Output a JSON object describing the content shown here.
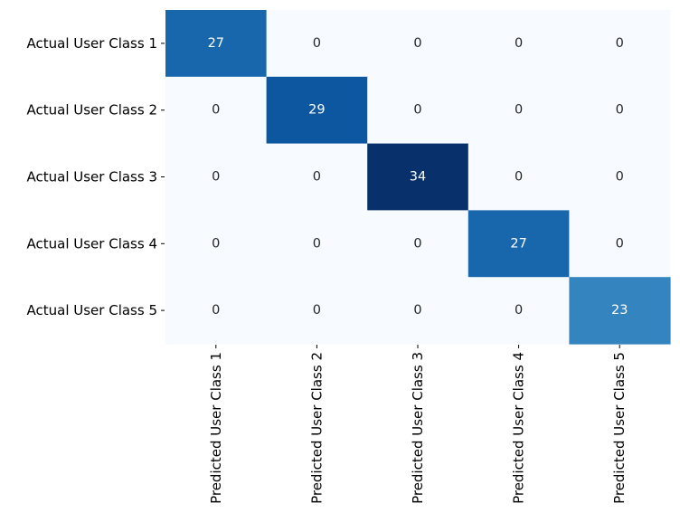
{
  "chart_data": {
    "type": "heatmap",
    "title": "",
    "xlabel": "",
    "ylabel": "",
    "colormap": "Blues",
    "colorbar": false,
    "row_labels": [
      "Actual User Class 1",
      "Actual User Class 2",
      "Actual User Class 3",
      "Actual User Class 4",
      "Actual User Class 5"
    ],
    "col_labels": [
      "Predicted User Class 1",
      "Predicted User Class 2",
      "Predicted User Class 3",
      "Predicted User Class 4",
      "Predicted User Class 5"
    ],
    "values": [
      [
        27,
        0,
        0,
        0,
        0
      ],
      [
        0,
        29,
        0,
        0,
        0
      ],
      [
        0,
        0,
        34,
        0,
        0
      ],
      [
        0,
        0,
        0,
        27,
        0
      ],
      [
        0,
        0,
        0,
        0,
        23
      ]
    ],
    "colors": {
      "low": "#f7fbff",
      "high": "#08306b",
      "text_on_light": "#262626",
      "text_on_dark": "#ffffff"
    }
  }
}
